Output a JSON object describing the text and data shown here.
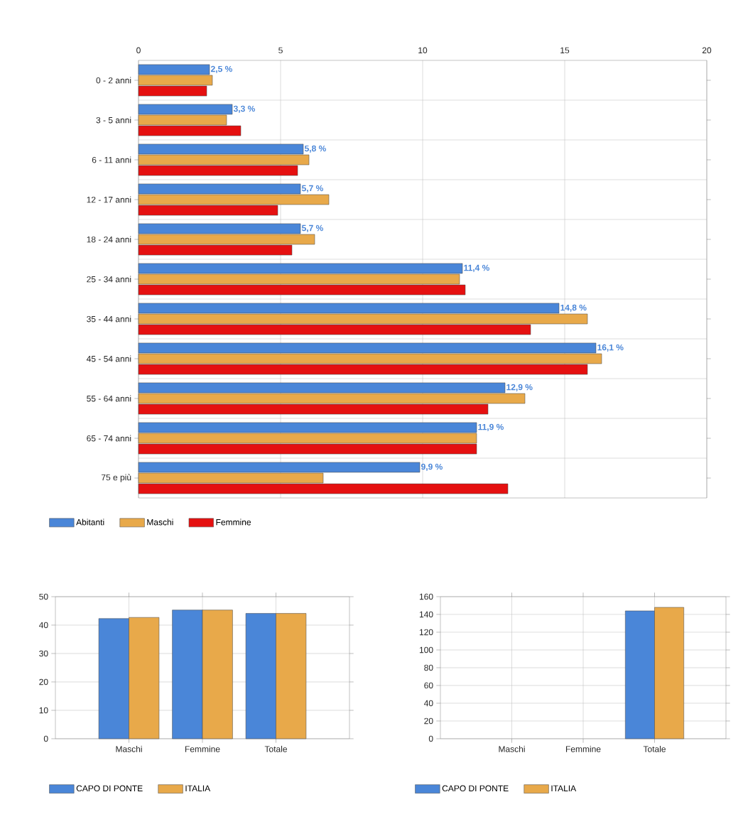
{
  "chart_data": [
    {
      "type": "bar",
      "orientation": "horizontal",
      "categories": [
        "0 - 2 anni",
        "3 - 5 anni",
        "6 - 11 anni",
        "12 - 17 anni",
        "18 - 24 anni",
        "25 - 34 anni",
        "35 - 44 anni",
        "45 - 54 anni",
        "55 - 64 anni",
        "65 - 74 anni",
        "75 e più"
      ],
      "series": [
        {
          "name": "Abitanti",
          "color": "#4a86d8",
          "values": [
            2.5,
            3.3,
            5.8,
            5.7,
            5.7,
            11.4,
            14.8,
            16.1,
            12.9,
            11.9,
            9.9
          ],
          "value_labels": [
            "2,5 %",
            "3,3 %",
            "5,8 %",
            "5,7 %",
            "5,7 %",
            "11,4 %",
            "14,8 %",
            "16,1 %",
            "12,9 %",
            "11,9 %",
            "9,9 %"
          ]
        },
        {
          "name": "Maschi",
          "color": "#e8a94a",
          "values": [
            2.6,
            3.1,
            6.0,
            6.7,
            6.2,
            11.3,
            15.8,
            16.3,
            13.6,
            11.9,
            6.5
          ]
        },
        {
          "name": "Femmine",
          "color": "#e51010",
          "values": [
            2.4,
            3.6,
            5.6,
            4.9,
            5.4,
            11.5,
            13.8,
            15.8,
            12.3,
            11.9,
            13.0
          ]
        }
      ],
      "xlim": [
        0,
        20
      ],
      "xticks": [
        0,
        5,
        10,
        15,
        20
      ],
      "grid": true,
      "legend": "bottom left"
    },
    {
      "type": "bar",
      "categories": [
        "Maschi",
        "Femmine",
        "Totale"
      ],
      "series": [
        {
          "name": "CAPO DI PONTE",
          "color": "#4a86d8",
          "values": [
            42.3,
            45.3,
            44.1
          ]
        },
        {
          "name": "ITALIA",
          "color": "#e8a94a",
          "values": [
            42.7,
            45.3,
            44.1
          ]
        }
      ],
      "ylim": [
        0,
        50
      ],
      "yticks": [
        0,
        10,
        20,
        30,
        40,
        50
      ],
      "grid": true,
      "legend": "bottom left"
    },
    {
      "type": "bar",
      "categories": [
        "Maschi",
        "Femmine",
        "Totale"
      ],
      "series": [
        {
          "name": "CAPO DI PONTE",
          "color": "#4a86d8",
          "values": [
            null,
            null,
            144
          ]
        },
        {
          "name": "ITALIA",
          "color": "#e8a94a",
          "values": [
            null,
            null,
            148
          ]
        }
      ],
      "ylim": [
        0,
        160
      ],
      "yticks": [
        0,
        20,
        40,
        60,
        80,
        100,
        120,
        140,
        160
      ],
      "grid": true,
      "legend": "bottom left"
    }
  ]
}
